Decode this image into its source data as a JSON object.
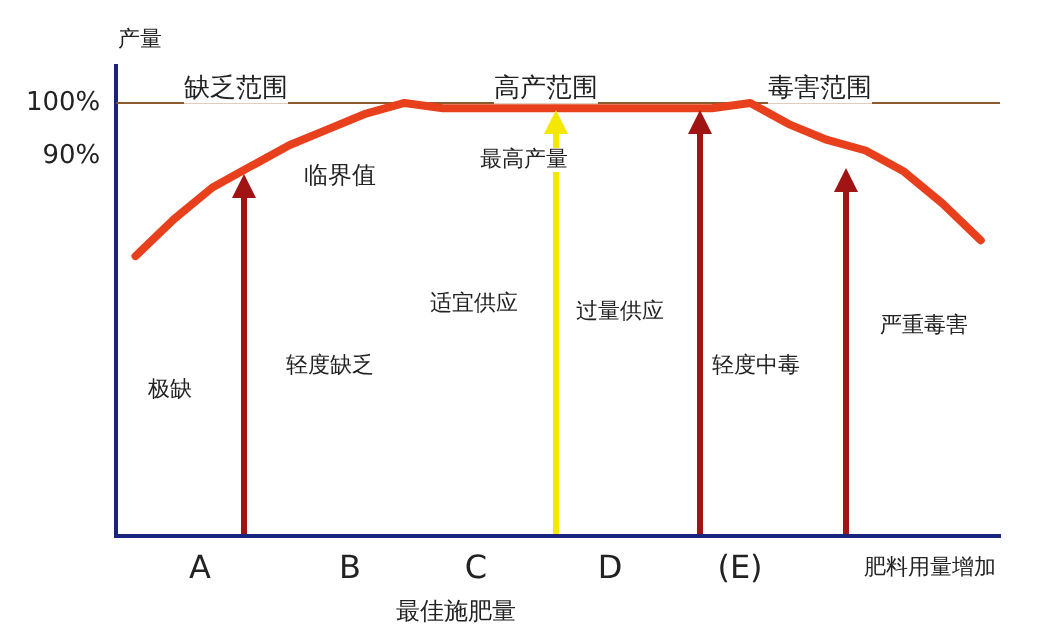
{
  "chart_data": {
    "type": "line",
    "ylabel": "产量",
    "xlabel": "最佳施肥量",
    "tick_labels": "y",
    "ylim": [
      18,
      107
    ],
    "yticks": [
      {
        "value": 90,
        "label": "90%"
      },
      {
        "value": 100,
        "label": "100%"
      }
    ],
    "categories": [
      null,
      null,
      null,
      null,
      null,
      null,
      null,
      null,
      null,
      null,
      null,
      null,
      null,
      null,
      null,
      null,
      null,
      null,
      null,
      null,
      null,
      null,
      null
    ],
    "series": [
      {
        "color": "#e8401c",
        "values": [
          71,
          78,
          84,
          88,
          92,
          95,
          98,
          100,
          99,
          99,
          99,
          99,
          99,
          99,
          99,
          99,
          100,
          96,
          93,
          91,
          87,
          81,
          74
        ]
      }
    ],
    "ref_lines": [
      {
        "axis": "y",
        "value": 100,
        "color": "#8b5a2b"
      }
    ],
    "annotations": [
      "缺乏范围",
      "高产范围",
      "毒害范围",
      "临界值",
      "最高产量",
      "适宜供应",
      "过量供应",
      "极缺",
      "轻度缺乏",
      "轻度中毒",
      "严重毒害",
      "A",
      "B",
      "C",
      "D",
      "(E)",
      "肥料用量增加"
    ]
  }
}
